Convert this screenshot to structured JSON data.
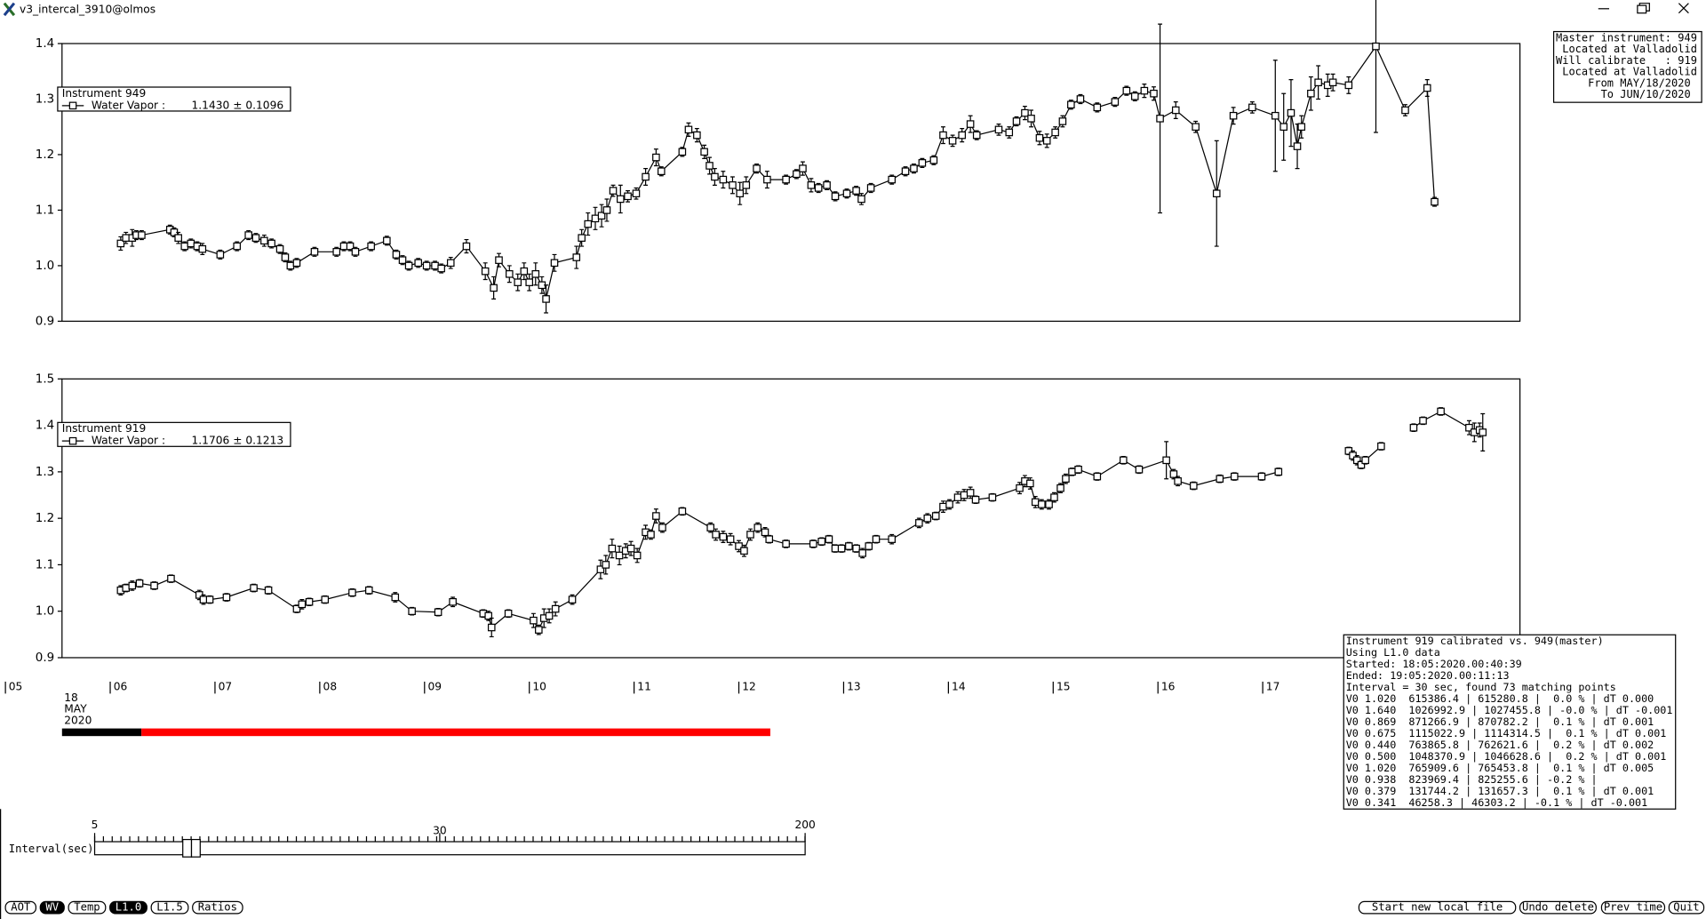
{
  "window": {
    "title": "v3_intercal_3910@olmos"
  },
  "chart_data": [
    {
      "type": "line",
      "legend_title": "Instrument 949",
      "legend_stat": "1.1430 ± 0.1096",
      "xlim": [
        5.54,
        19.455
      ],
      "ylim": [
        0.9,
        1.4
      ],
      "yticks": [
        0.9,
        {
          "value": 1,
          "label": "1.0"
        },
        1.1,
        1.2,
        1.3,
        1.4
      ],
      "x": [
        6.1,
        6.15,
        6.21,
        6.25,
        6.3,
        6.57,
        6.61,
        6.65,
        6.71,
        6.77,
        6.83,
        6.88,
        7.05,
        7.21,
        7.32,
        7.39,
        7.47,
        7.54,
        7.62,
        7.67,
        7.72,
        7.78,
        7.95,
        8.16,
        8.23,
        8.29,
        8.34,
        8.49,
        8.64,
        8.73,
        8.79,
        8.85,
        8.94,
        9.02,
        9.1,
        9.16,
        9.25,
        9.4,
        9.58,
        9.66,
        9.71,
        9.81,
        9.89,
        9.95,
        10.0,
        10.06,
        10.12,
        10.16,
        10.24,
        10.45,
        10.5,
        10.56,
        10.63,
        10.69,
        10.74,
        10.8,
        10.87,
        10.94,
        11.02,
        11.11,
        11.21,
        11.26,
        11.46,
        11.52,
        11.6,
        11.67,
        11.72,
        11.77,
        11.85,
        11.94,
        12.01,
        12.07,
        12.17,
        12.27,
        12.45,
        12.55,
        12.61,
        12.69,
        12.76,
        12.84,
        12.92,
        13.03,
        13.12,
        13.17,
        13.26,
        13.46,
        13.59,
        13.67,
        13.75,
        13.86,
        13.95,
        14.04,
        14.13,
        14.21,
        14.27,
        14.48,
        14.58,
        14.65,
        14.73,
        14.79,
        14.87,
        14.94,
        15.02,
        15.09,
        15.17,
        15.26,
        15.42,
        15.59,
        15.7,
        15.78,
        15.87,
        15.96,
        16.02,
        16.17,
        16.36,
        16.56,
        16.72,
        16.9,
        17.12,
        17.2,
        17.27,
        17.33,
        17.37,
        17.46,
        17.53,
        17.62,
        17.67,
        17.82,
        18.08,
        18.36,
        18.57,
        18.64
      ],
      "series": [
        {
          "name": "Water Vapor :",
          "color": "#000000",
          "values": [
            1.04,
            1.05,
            1.05,
            1.055,
            1.055,
            1.065,
            1.06,
            1.05,
            1.035,
            1.04,
            1.035,
            1.03,
            1.02,
            1.035,
            1.055,
            1.05,
            1.045,
            1.04,
            1.03,
            1.015,
            1.0,
            1.005,
            1.025,
            1.025,
            1.035,
            1.035,
            1.025,
            1.035,
            1.045,
            1.02,
            1.01,
            1.0,
            1.005,
            1.0,
            1.0,
            0.995,
            1.005,
            1.035,
            0.99,
            0.96,
            1.01,
            0.985,
            0.97,
            0.99,
            0.97,
            0.985,
            0.965,
            0.94,
            1.005,
            1.015,
            1.05,
            1.075,
            1.085,
            1.09,
            1.1,
            1.135,
            1.12,
            1.125,
            1.13,
            1.16,
            1.195,
            1.17,
            1.205,
            1.245,
            1.235,
            1.205,
            1.18,
            1.16,
            1.155,
            1.145,
            1.13,
            1.145,
            1.175,
            1.155,
            1.155,
            1.165,
            1.175,
            1.145,
            1.14,
            1.145,
            1.125,
            1.13,
            1.135,
            1.12,
            1.14,
            1.155,
            1.17,
            1.175,
            1.185,
            1.19,
            1.235,
            1.225,
            1.235,
            1.255,
            1.235,
            1.245,
            1.24,
            1.26,
            1.275,
            1.265,
            1.23,
            1.225,
            1.24,
            1.26,
            1.29,
            1.3,
            1.285,
            1.295,
            1.315,
            1.305,
            1.315,
            1.31,
            1.265,
            1.28,
            1.25,
            1.13,
            1.27,
            1.285,
            1.27,
            1.25,
            1.275,
            1.215,
            1.25,
            1.31,
            1.33,
            1.325,
            1.33,
            1.325,
            1.395,
            1.28,
            1.32,
            1.115
          ],
          "errors": [
            0.012,
            0.01,
            0.015,
            0.008,
            0.008,
            0.008,
            0.008,
            0.01,
            0.008,
            0.008,
            0.008,
            0.01,
            0.008,
            0.008,
            0.008,
            0.008,
            0.01,
            0.008,
            0.008,
            0.008,
            0.008,
            0.008,
            0.008,
            0.008,
            0.008,
            0.008,
            0.008,
            0.008,
            0.008,
            0.008,
            0.008,
            0.008,
            0.008,
            0.008,
            0.008,
            0.008,
            0.01,
            0.012,
            0.015,
            0.02,
            0.012,
            0.015,
            0.015,
            0.015,
            0.015,
            0.02,
            0.015,
            0.025,
            0.015,
            0.02,
            0.015,
            0.02,
            0.02,
            0.02,
            0.02,
            0.01,
            0.025,
            0.01,
            0.01,
            0.015,
            0.015,
            0.008,
            0.008,
            0.012,
            0.012,
            0.012,
            0.015,
            0.015,
            0.015,
            0.015,
            0.02,
            0.015,
            0.008,
            0.015,
            0.008,
            0.008,
            0.012,
            0.012,
            0.008,
            0.008,
            0.008,
            0.008,
            0.008,
            0.01,
            0.008,
            0.008,
            0.008,
            0.008,
            0.008,
            0.008,
            0.015,
            0.01,
            0.012,
            0.015,
            0.008,
            0.01,
            0.01,
            0.008,
            0.012,
            0.015,
            0.012,
            0.012,
            0.01,
            0.01,
            0.008,
            0.008,
            0.008,
            0.008,
            0.008,
            0.008,
            0.012,
            0.012,
            0.17,
            0.015,
            0.01,
            0.095,
            0.015,
            0.01,
            0.1,
            0.06,
            0.06,
            0.04,
            0.02,
            0.03,
            0.03,
            0.02,
            0.015,
            0.015,
            0.155,
            0.01,
            0.015,
            0.008
          ]
        }
      ]
    },
    {
      "type": "line",
      "legend_title": "Instrument 919",
      "legend_stat": "1.1706 ± 0.1213",
      "xlim": [
        5.54,
        19.455
      ],
      "ylim": [
        0.9,
        1.5
      ],
      "yticks": [
        0.9,
        {
          "value": 1,
          "label": "1.0"
        },
        1.1,
        1.2,
        1.3,
        1.4,
        1.5
      ],
      "xticks": [
        {
          "value": 5,
          "label": "05"
        },
        {
          "value": 6,
          "label": "06"
        },
        {
          "value": 7,
          "label": "07"
        },
        {
          "value": 8,
          "label": "08"
        },
        {
          "value": 9,
          "label": "09"
        },
        10,
        11,
        12,
        13,
        14,
        15,
        16,
        17
      ],
      "date_label": [
        "18",
        "MAY",
        "2020"
      ],
      "x": [
        6.1,
        6.15,
        6.21,
        6.28,
        6.42,
        6.58,
        6.85,
        6.89,
        6.95,
        7.11,
        7.37,
        7.51,
        7.78,
        7.83,
        7.9,
        8.05,
        8.31,
        8.47,
        8.72,
        8.88,
        9.13,
        9.27,
        9.56,
        9.61,
        9.64,
        9.8,
        10.04,
        10.09,
        10.14,
        10.19,
        10.25,
        10.41,
        10.68,
        10.73,
        10.79,
        10.86,
        10.92,
        10.97,
        11.03,
        11.11,
        11.16,
        11.21,
        11.27,
        11.46,
        11.73,
        11.78,
        11.85,
        11.92,
        12.0,
        12.05,
        12.11,
        12.18,
        12.25,
        12.29,
        12.45,
        12.71,
        12.79,
        12.86,
        12.92,
        12.98,
        13.05,
        13.12,
        13.18,
        13.24,
        13.31,
        13.46,
        13.72,
        13.8,
        13.88,
        13.95,
        14.01,
        14.09,
        14.15,
        14.21,
        14.26,
        14.42,
        14.68,
        14.73,
        14.78,
        14.83,
        14.89,
        14.96,
        15.01,
        15.07,
        15.12,
        15.18,
        15.24,
        15.42,
        15.67,
        15.82,
        16.08,
        16.15,
        16.19,
        16.34,
        16.59,
        16.73,
        16.99,
        17.15,
        null,
        17.82,
        17.86,
        17.9,
        17.94,
        17.98,
        18.13,
        null,
        18.44,
        18.53,
        18.7,
        18.97,
        19.02,
        19.07,
        19.1
      ],
      "series": [
        {
          "name": "Water Vapor :",
          "color": "#000000",
          "values": [
            1.045,
            1.05,
            1.055,
            1.06,
            1.055,
            1.07,
            1.035,
            1.025,
            1.025,
            1.03,
            1.05,
            1.045,
            1.005,
            1.015,
            1.02,
            1.025,
            1.04,
            1.045,
            1.03,
            1.0,
            0.998,
            1.02,
            0.995,
            0.99,
            0.965,
            0.995,
            0.98,
            0.96,
            0.985,
            0.99,
            1.005,
            1.025,
            1.09,
            1.1,
            1.135,
            1.12,
            1.13,
            1.135,
            1.12,
            1.17,
            1.165,
            1.205,
            1.18,
            1.215,
            1.18,
            1.165,
            1.16,
            1.155,
            1.14,
            1.13,
            1.165,
            1.18,
            1.17,
            1.155,
            1.145,
            1.145,
            1.15,
            1.155,
            1.135,
            1.135,
            1.14,
            1.135,
            1.125,
            1.14,
            1.155,
            1.155,
            1.19,
            1.2,
            1.205,
            1.225,
            1.23,
            1.245,
            1.25,
            1.255,
            1.24,
            1.245,
            1.265,
            1.28,
            1.275,
            1.235,
            1.23,
            1.23,
            1.245,
            1.265,
            1.285,
            1.3,
            1.305,
            1.29,
            1.325,
            1.305,
            1.325,
            1.295,
            1.28,
            1.27,
            1.285,
            1.29,
            1.29,
            1.3,
            null,
            1.345,
            1.335,
            1.325,
            1.315,
            1.325,
            1.355,
            null,
            1.395,
            1.41,
            1.43,
            1.395,
            1.385,
            1.39,
            1.385
          ],
          "errors": [
            0.01,
            0.008,
            0.01,
            0.008,
            0.008,
            0.008,
            0.01,
            0.01,
            0.008,
            0.008,
            0.008,
            0.008,
            0.008,
            0.01,
            0.008,
            0.008,
            0.008,
            0.008,
            0.01,
            0.008,
            0.008,
            0.01,
            0.008,
            0.01,
            0.02,
            0.008,
            0.015,
            0.01,
            0.02,
            0.015,
            0.015,
            0.01,
            0.02,
            0.02,
            0.02,
            0.02,
            0.015,
            0.015,
            0.015,
            0.015,
            0.01,
            0.015,
            0.01,
            0.008,
            0.01,
            0.012,
            0.012,
            0.012,
            0.012,
            0.012,
            0.012,
            0.01,
            0.01,
            0.008,
            0.008,
            0.008,
            0.008,
            0.008,
            0.008,
            0.008,
            0.008,
            0.008,
            0.01,
            0.008,
            0.008,
            0.01,
            0.01,
            0.01,
            0.008,
            0.012,
            0.01,
            0.012,
            0.012,
            0.012,
            0.008,
            0.008,
            0.012,
            0.012,
            0.012,
            0.012,
            0.01,
            0.01,
            0.01,
            0.01,
            0.01,
            0.008,
            0.008,
            0.008,
            0.008,
            0.008,
            0.04,
            0.01,
            0.01,
            0.008,
            0.008,
            0.008,
            0.008,
            0.008,
            null,
            0.008,
            0.01,
            0.01,
            0.008,
            0.008,
            0.008,
            null,
            0.008,
            0.008,
            0.008,
            0.015,
            0.02,
            0.015,
            0.04
          ]
        }
      ]
    }
  ],
  "info_box": {
    "lines": [
      "Master instrument: 949",
      " Located at Valladolid",
      "Will calibrate   : 919",
      " Located at Valladolid",
      "     From MAY/18/2020",
      "       To JUN/10/2020"
    ]
  },
  "calibration_panel": {
    "lines": [
      "Instrument 919 calibrated vs. 949(master)",
      "Using L1.0 data",
      "Started: 18:05:2020.00:40:39",
      "Ended: 19:05:2020.00:11:13",
      "Interval = 30 sec, found 73 matching points",
      "V0 1.020  615386.4 | 615280.8 |  0.0 % | dT 0.000",
      "V0 1.640  1026992.9 | 1027455.8 | -0.0 % | dT -0.001",
      "V0 0.869  871266.9 | 870782.2 |  0.1 % | dT 0.001",
      "V0 0.675  1115022.9 | 1114314.5 |  0.1 % | dT 0.001",
      "V0 0.440  763865.8 | 762621.6 |  0.2 % | dT 0.002",
      "V0 0.500  1048370.9 | 1046628.6 |  0.2 % | dT 0.001",
      "V0 1.020  765909.6 | 765453.8 |  0.1 % | dT 0.005",
      "V0 0.938  823969.4 | 825255.6 | -0.2 % |",
      "V0 0.379  131744.2 | 131657.3 |  0.1 % | dT 0.001",
      "V0 0.341  46258.3 | 46303.2 | -0.1 % | dT -0.001"
    ]
  },
  "slider": {
    "label": "Interval(sec)",
    "lim": [
      5,
      200
    ],
    "ticks": [
      5,
      30,
      200
    ],
    "log": true
  },
  "buttons_left": [
    {
      "label": "AOT",
      "selected": false
    },
    {
      "label": "WV",
      "selected": true
    },
    {
      "label": "Temp",
      "selected": false
    },
    {
      "label": "L1.0",
      "selected": true
    },
    {
      "label": "L1.5",
      "selected": false
    },
    {
      "label": "Ratios",
      "selected": false
    }
  ],
  "buttons_right": [
    "Start new local file",
    "Undo delete",
    "Prev time",
    "Quit"
  ]
}
